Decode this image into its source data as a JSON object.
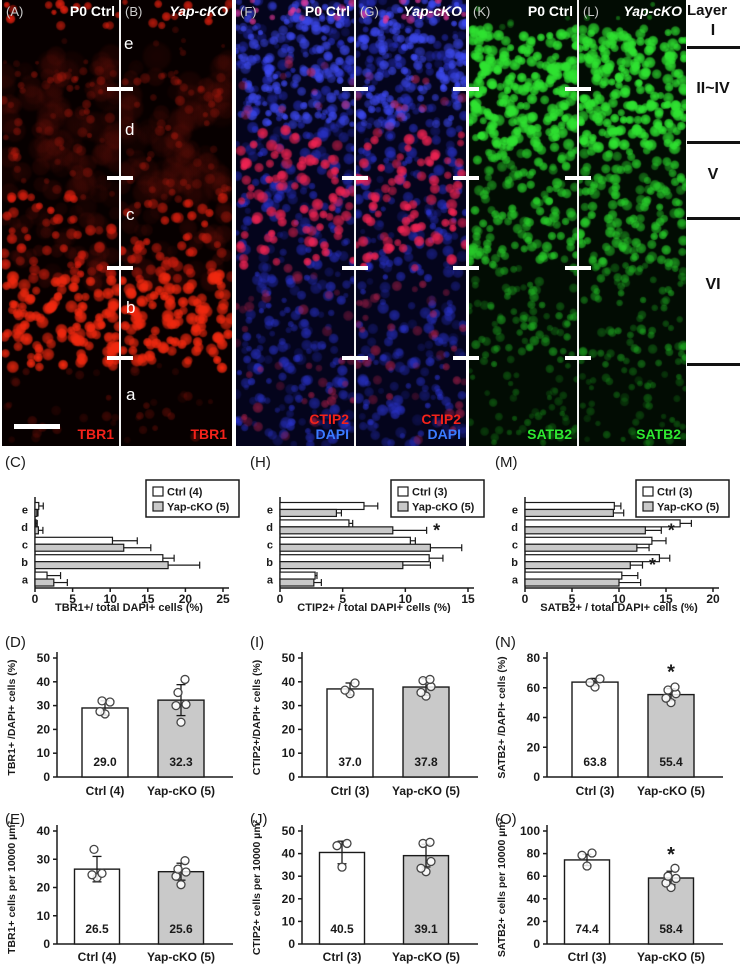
{
  "figure_panels": {
    "micrographs": [
      {
        "label": "(A)",
        "condition": "P0 Ctrl",
        "markers": [
          "TBR1"
        ]
      },
      {
        "label": "(B)",
        "condition": "Yap-cKO",
        "markers": [
          "TBR1"
        ]
      },
      {
        "label": "(F)",
        "condition": "P0 Ctrl",
        "markers": [
          "CTIP2",
          "DAPI"
        ]
      },
      {
        "label": "(G)",
        "condition": "Yap-cKO",
        "markers": [
          "CTIP2",
          "DAPI"
        ]
      },
      {
        "label": "(K)",
        "condition": "P0 Ctrl",
        "markers": [
          "SATB2"
        ]
      },
      {
        "label": "(L)",
        "condition": "Yap-cKO",
        "markers": [
          "SATB2"
        ]
      }
    ],
    "zone_letters": [
      "e",
      "d",
      "c",
      "b",
      "a"
    ],
    "layer_column": {
      "title": "Layer",
      "labels": [
        "I",
        "II~IV",
        "V",
        "VI"
      ]
    }
  },
  "colors": {
    "red_marker": "#f3221a",
    "blue_marker": "#3b7bff",
    "green_marker": "#2ee830",
    "bar_white": "#ffffff",
    "bar_gray": "#c9c9c9",
    "ink": "#1a1a1a"
  },
  "chart_data": [
    {
      "id": "C",
      "panel_label": "(C)",
      "type": "bar",
      "orientation": "horizontal",
      "categories": [
        "e",
        "d",
        "c",
        "b",
        "a"
      ],
      "series": [
        {
          "name": "Ctrl (4)",
          "fill": "white",
          "values": [
            0.5,
            0.15,
            10.3,
            17.0,
            1.6
          ],
          "errors": [
            0.6,
            0.15,
            3.3,
            1.5,
            1.8
          ]
        },
        {
          "name": "Yap-cKO (5)",
          "fill": "gray",
          "values": [
            0.25,
            0.45,
            11.8,
            17.7,
            2.5
          ],
          "errors": [
            0.15,
            0.6,
            3.6,
            4.2,
            1.8
          ]
        }
      ],
      "significant_categories": [],
      "xlabel": "TBR1+/ total DAPI+ cells (%)",
      "xlim": [
        0,
        25
      ],
      "xticks": [
        0,
        5,
        10,
        15,
        20,
        25
      ]
    },
    {
      "id": "H",
      "panel_label": "(H)",
      "type": "bar",
      "orientation": "horizontal",
      "categories": [
        "e",
        "d",
        "c",
        "b",
        "a"
      ],
      "series": [
        {
          "name": "Ctrl (3)",
          "fill": "white",
          "values": [
            6.7,
            5.5,
            10.4,
            11.9,
            2.8
          ],
          "errors": [
            1.1,
            0.3,
            0.4,
            1.1,
            0.15
          ]
        },
        {
          "name": "Yap-cKO (5)",
          "fill": "gray",
          "values": [
            4.5,
            9.0,
            12.0,
            9.8,
            2.7
          ],
          "errors": [
            0.4,
            2.7,
            2.5,
            2.2,
            0.6
          ]
        }
      ],
      "significant_categories": [
        1
      ],
      "xlabel": "CTIP2+ / total DAPI+ cells (%)",
      "xlim": [
        0,
        15
      ],
      "xticks": [
        0,
        5,
        10,
        15
      ]
    },
    {
      "id": "M",
      "panel_label": "(M)",
      "type": "bar",
      "orientation": "horizontal",
      "categories": [
        "e",
        "d",
        "c",
        "b",
        "a"
      ],
      "series": [
        {
          "name": "Ctrl (3)",
          "fill": "white",
          "values": [
            9.5,
            16.5,
            13.5,
            14.3,
            10.3
          ],
          "errors": [
            0.7,
            1.2,
            1.5,
            1.1,
            1.7
          ]
        },
        {
          "name": "Yap-cKO (5)",
          "fill": "gray",
          "values": [
            9.4,
            12.8,
            11.9,
            11.2,
            10.0
          ],
          "errors": [
            1.1,
            1.7,
            1.3,
            1.3,
            2.3
          ]
        }
      ],
      "significant_categories": [
        1,
        3
      ],
      "xlabel": "SATB2+ / total DAPI+ cells (%)",
      "xlim": [
        0,
        20
      ],
      "xticks": [
        0,
        5,
        10,
        15,
        20
      ]
    },
    {
      "id": "D",
      "panel_label": "(D)",
      "type": "bar",
      "orientation": "vertical",
      "ylabel": "TBR1+ /DAPI+ cells (%)",
      "ylim": [
        0,
        50
      ],
      "yticks": [
        0,
        10,
        20,
        30,
        40,
        50
      ],
      "groups": [
        {
          "label": "Ctrl (4)",
          "fill": "white",
          "value": 29.0,
          "value_label": "29.0",
          "error": 3.0,
          "points": [
            26.5,
            27.5,
            31.5,
            32.0
          ],
          "sig": false
        },
        {
          "label": "Yap-cKO (5)",
          "fill": "gray",
          "value": 32.3,
          "value_label": "32.3",
          "error": 6.5,
          "points": [
            23.0,
            30.0,
            30.5,
            35.5,
            41.0
          ],
          "sig": false
        }
      ]
    },
    {
      "id": "I",
      "panel_label": "(I)",
      "type": "bar",
      "orientation": "vertical",
      "ylabel": "CTIP2+/DAPI+ cells (%)",
      "ylim": [
        0,
        50
      ],
      "yticks": [
        0,
        10,
        20,
        30,
        40,
        50
      ],
      "groups": [
        {
          "label": "Ctrl (3)",
          "fill": "white",
          "value": 37.0,
          "value_label": "37.0",
          "error": 2.5,
          "points": [
            35.0,
            36.5,
            39.5
          ],
          "sig": false
        },
        {
          "label": "Yap-cKO (5)",
          "fill": "gray",
          "value": 37.8,
          "value_label": "37.8",
          "error": 3.5,
          "points": [
            34.0,
            35.5,
            38.0,
            40.5,
            41.0
          ],
          "sig": false
        }
      ]
    },
    {
      "id": "N",
      "panel_label": "(N)",
      "type": "bar",
      "orientation": "vertical",
      "ylabel": "SATB2+ /DAPI+ cells (%)",
      "ylim": [
        0,
        80
      ],
      "yticks": [
        0,
        20,
        40,
        60,
        80
      ],
      "groups": [
        {
          "label": "Ctrl (3)",
          "fill": "white",
          "value": 63.8,
          "value_label": "63.8",
          "error": 2.5,
          "points": [
            60.5,
            63.5,
            66.0
          ],
          "sig": false
        },
        {
          "label": "Yap-cKO (5)",
          "fill": "gray",
          "value": 55.4,
          "value_label": "55.4",
          "error": 4.0,
          "points": [
            50.0,
            53.0,
            56.0,
            58.5,
            60.5
          ],
          "sig": true
        }
      ]
    },
    {
      "id": "E",
      "panel_label": "(E)",
      "type": "bar",
      "orientation": "vertical",
      "ylabel": "TBR1+ cells per 10000 µm²",
      "ylim": [
        0,
        40
      ],
      "yticks": [
        0,
        10,
        20,
        30,
        40
      ],
      "groups": [
        {
          "label": "Ctrl (4)",
          "fill": "white",
          "value": 26.5,
          "value_label": "26.5",
          "error": 4.5,
          "points": [
            23.5,
            24.5,
            25.0,
            33.5
          ],
          "sig": false
        },
        {
          "label": "Yap-cKO (5)",
          "fill": "gray",
          "value": 25.6,
          "value_label": "25.6",
          "error": 3.0,
          "points": [
            21.0,
            24.0,
            25.5,
            26.5,
            29.5
          ],
          "sig": false
        }
      ]
    },
    {
      "id": "J",
      "panel_label": "(J)",
      "type": "bar",
      "orientation": "vertical",
      "ylabel": "CTIP2+ cells per 10000 µm²",
      "ylim": [
        0,
        50
      ],
      "yticks": [
        0,
        10,
        20,
        30,
        40,
        50
      ],
      "groups": [
        {
          "label": "Ctrl (3)",
          "fill": "white",
          "value": 40.5,
          "value_label": "40.5",
          "error": 5.0,
          "points": [
            34.0,
            43.5,
            44.5
          ],
          "sig": false
        },
        {
          "label": "Yap-cKO (5)",
          "fill": "gray",
          "value": 39.1,
          "value_label": "39.1",
          "error": 5.0,
          "points": [
            32.0,
            33.5,
            36.5,
            44.5,
            45.0
          ],
          "sig": false
        }
      ]
    },
    {
      "id": "O",
      "panel_label": "(O)",
      "type": "bar",
      "orientation": "vertical",
      "ylabel": "SATB2+ cells per 10000 µm²",
      "ylim": [
        0,
        100
      ],
      "yticks": [
        0,
        20,
        40,
        60,
        80,
        100
      ],
      "groups": [
        {
          "label": "Ctrl (3)",
          "fill": "white",
          "value": 74.4,
          "value_label": "74.4",
          "error": 5.0,
          "points": [
            69.0,
            78.5,
            80.5
          ],
          "sig": false
        },
        {
          "label": "Yap-cKO (5)",
          "fill": "gray",
          "value": 58.4,
          "value_label": "58.4",
          "error": 6.0,
          "points": [
            50.0,
            54.0,
            58.0,
            60.0,
            67.0
          ],
          "sig": true
        }
      ]
    }
  ]
}
